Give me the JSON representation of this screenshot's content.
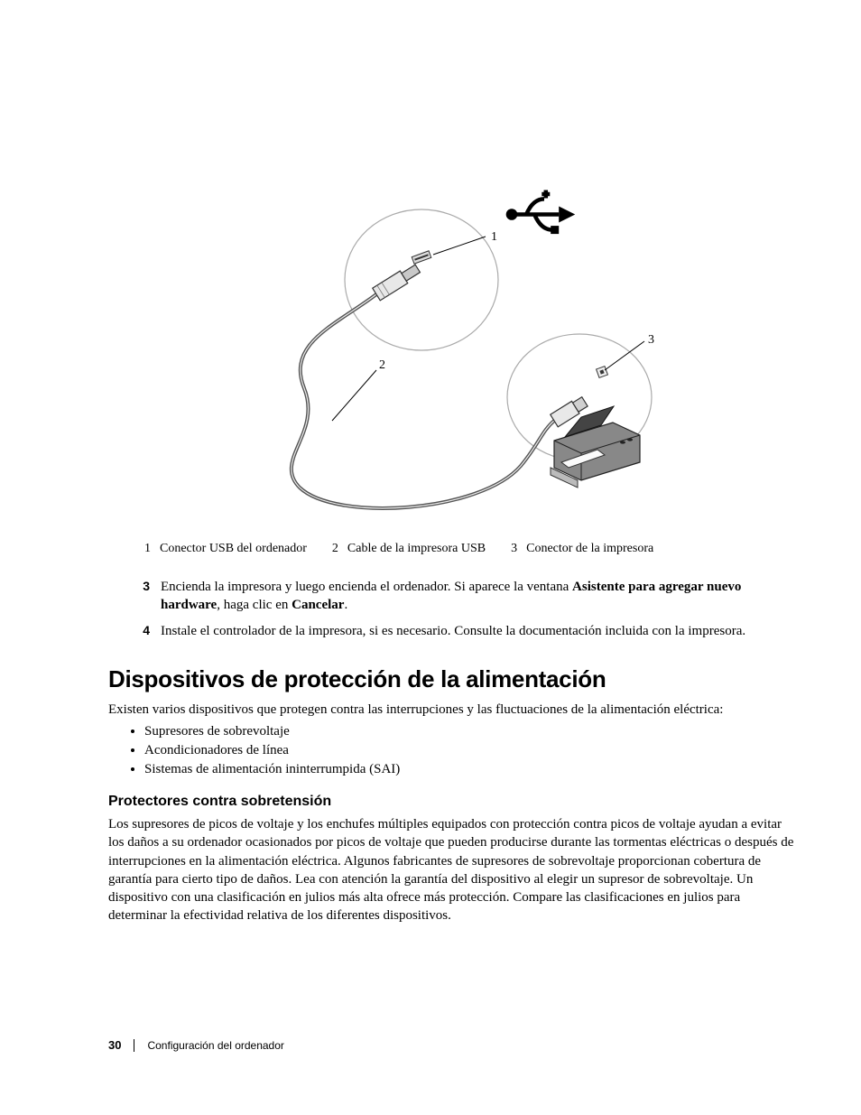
{
  "diagram": {
    "usb_icon_color": "#000000",
    "line_color": "#555555",
    "ellipse_stroke": "#888888",
    "callout_1": "1",
    "callout_2": "2",
    "callout_3": "3"
  },
  "captions": [
    {
      "num": "1",
      "text": "Conector USB del ordenador"
    },
    {
      "num": "2",
      "text": "Cable de la impresora USB"
    },
    {
      "num": "3",
      "text": "Conector de la impresora"
    }
  ],
  "steps": [
    {
      "num": "3",
      "parts": [
        {
          "t": "Encienda la impresora y luego encienda el ordenador. Si aparece la ventana ",
          "b": false
        },
        {
          "t": "Asistente para agregar nuevo hardware",
          "b": true
        },
        {
          "t": ", haga clic en ",
          "b": false
        },
        {
          "t": "Cancelar",
          "b": true
        },
        {
          "t": ".",
          "b": false
        }
      ]
    },
    {
      "num": "4",
      "parts": [
        {
          "t": "Instale el controlador de la impresora, si es necesario. Consulte la documentación incluida con la impresora.",
          "b": false
        }
      ]
    }
  ],
  "section_title": "Dispositivos de protección de la alimentación",
  "section_intro": "Existen varios dispositivos que protegen contra las interrupciones y las fluctuaciones de la alimentación eléctrica:",
  "bullets": [
    "Supresores de sobrevoltaje",
    "Acondicionadores de línea",
    "Sistemas de alimentación ininterrumpida (SAI)"
  ],
  "subsection_title": "Protectores contra sobretensión",
  "subsection_body": "Los supresores de picos de voltaje y los enchufes múltiples equipados con protección contra picos de voltaje ayudan a evitar los daños a su ordenador ocasionados por picos de voltaje que pueden producirse durante las tormentas eléctricas o después de interrupciones en la alimentación eléctrica. Algunos fabricantes de supresores de sobrevoltaje proporcionan cobertura de garantía para cierto tipo de daños. Lea con atención la garantía del dispositivo al elegir un supresor de sobrevoltaje. Un dispositivo con una clasificación en julios más alta ofrece más protección. Compare las clasificaciones en julios para determinar la efectividad relativa de los diferentes dispositivos.",
  "footer": {
    "page_number": "30",
    "chapter": "Configuración del ordenador"
  },
  "styles": {
    "body_font": "Georgia, serif",
    "heading_font": "Arial, Helvetica, sans-serif",
    "body_fontsize": 15,
    "heading_fontsize": 26,
    "sub_fontsize": 16,
    "caption_fontsize": 14,
    "footer_fontsize": 12,
    "text_color": "#000000",
    "background_color": "#ffffff"
  }
}
